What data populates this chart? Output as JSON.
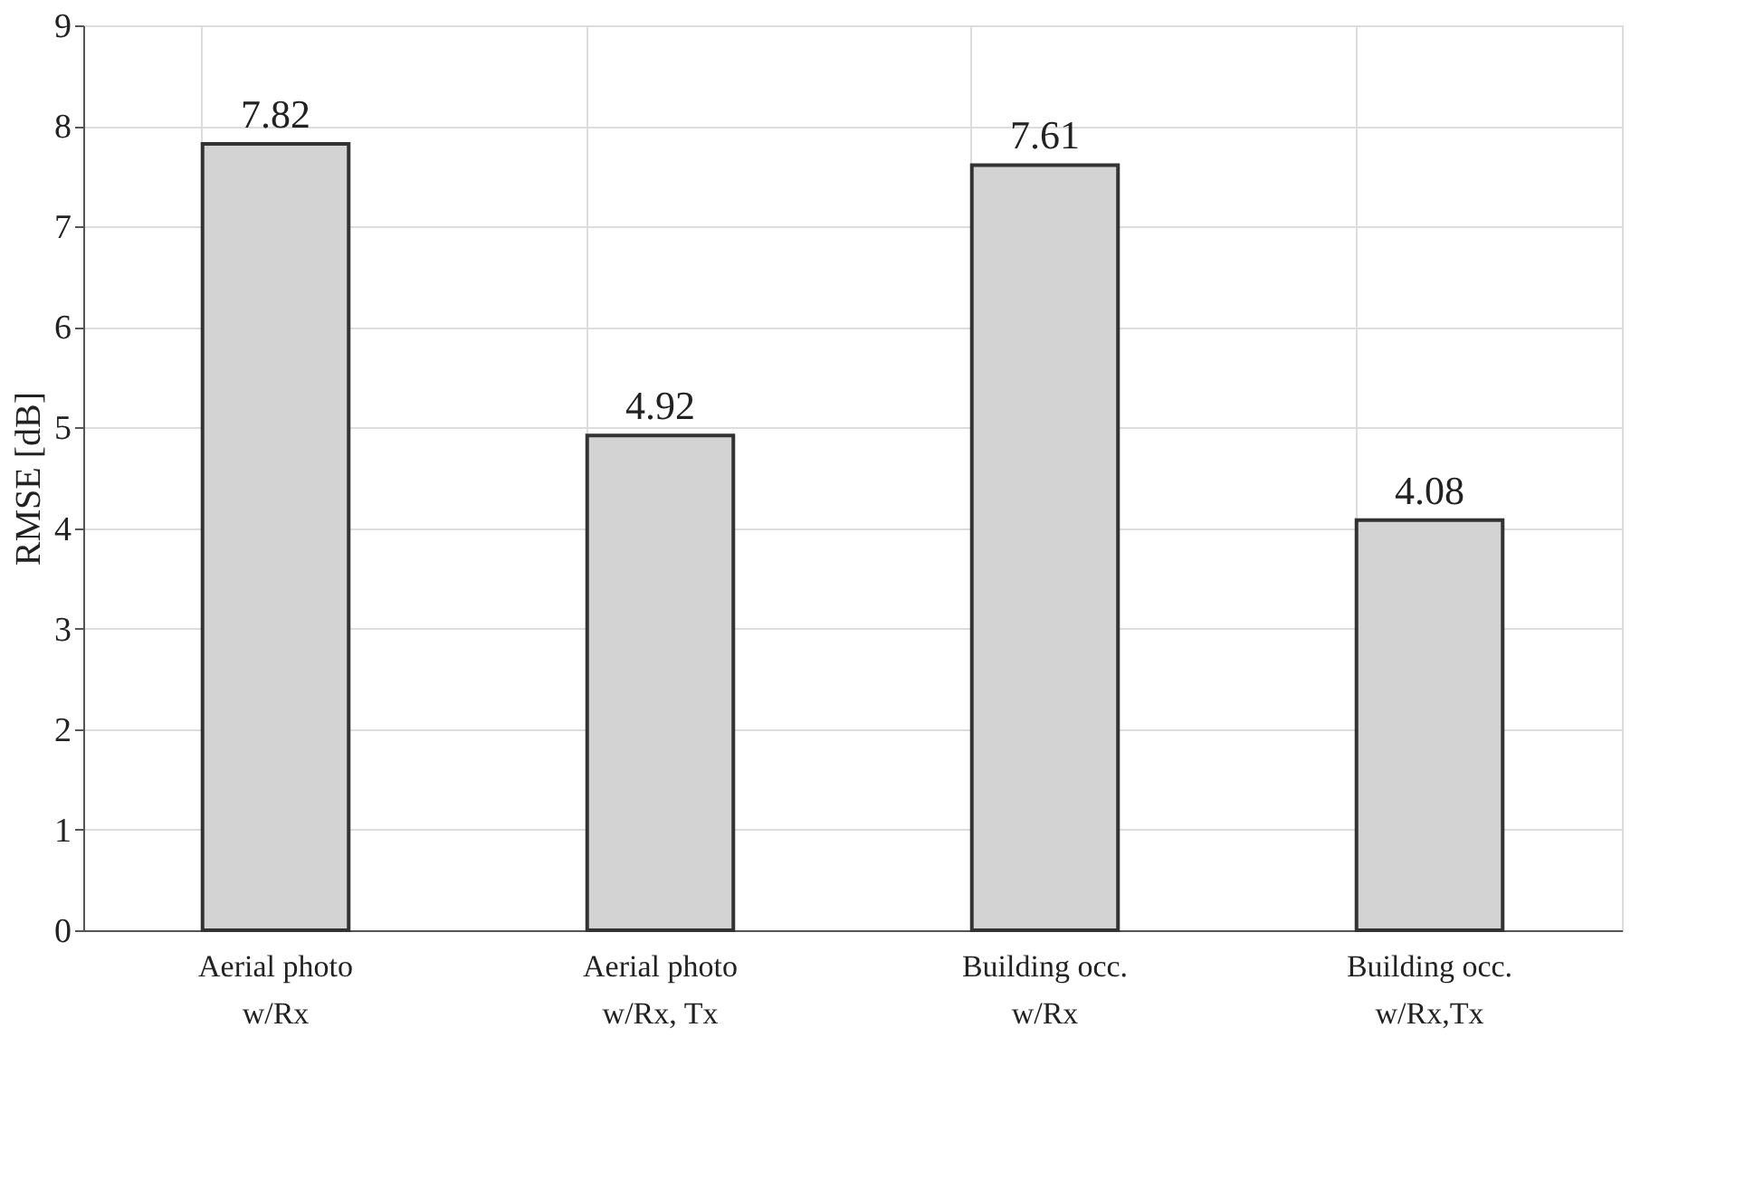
{
  "chart_data": {
    "type": "bar",
    "ylabel": "RMSE [dB]",
    "categories": [
      "Aerial photo\nw/Rx",
      "Aerial photo\nw/Rx, Tx",
      "Building occ.\nw/Rx",
      "Building occ.\nw/Rx,Tx"
    ],
    "values": [
      7.82,
      4.92,
      7.61,
      4.08
    ],
    "color": "#d3d3d3",
    "data_labels": true,
    "ylim": [
      0,
      9
    ],
    "yticks": [
      0,
      1,
      2,
      3,
      4,
      5,
      6,
      7,
      8,
      9
    ],
    "grid": true
  }
}
